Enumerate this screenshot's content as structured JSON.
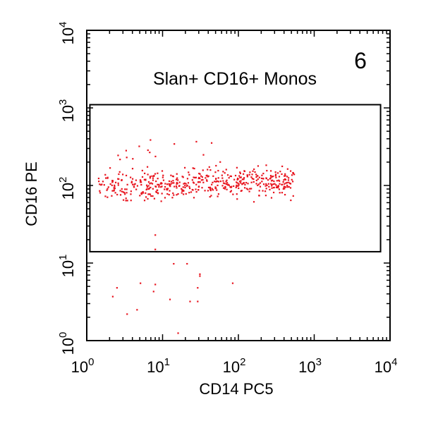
{
  "chart_data": {
    "type": "scatter",
    "panel_number": "6",
    "xlabel": "CD14 PC5",
    "ylabel": "CD16 PE",
    "xscale": "log",
    "yscale": "log",
    "xlim": [
      1,
      10000
    ],
    "ylim": [
      1,
      10000
    ],
    "x_ticks": [
      {
        "value": 1,
        "base": "10",
        "exp": "0"
      },
      {
        "value": 10,
        "base": "10",
        "exp": "1"
      },
      {
        "value": 100,
        "base": "10",
        "exp": "2"
      },
      {
        "value": 1000,
        "base": "10",
        "exp": "3"
      },
      {
        "value": 10000,
        "base": "10",
        "exp": "4"
      }
    ],
    "y_ticks": [
      {
        "value": 1,
        "base": "10",
        "exp": "0"
      },
      {
        "value": 10,
        "base": "10",
        "exp": "1"
      },
      {
        "value": 100,
        "base": "10",
        "exp": "2"
      },
      {
        "value": 1000,
        "base": "10",
        "exp": "3"
      },
      {
        "value": 10000,
        "base": "10",
        "exp": "4"
      }
    ],
    "point_color": "#e8141e",
    "gate": {
      "label": "Slan+ CD16+ Monos",
      "x_range": [
        1.1,
        7500
      ],
      "y_range": [
        14,
        1100
      ]
    },
    "outliers": [
      [
        0.9,
        9.5
      ],
      [
        2.5,
        4.8
      ],
      [
        2.2,
        3.7
      ],
      [
        3.4,
        2.2
      ],
      [
        4.6,
        2.5
      ],
      [
        5.1,
        5.5
      ],
      [
        8.0,
        5.3
      ],
      [
        7.6,
        4.3
      ],
      [
        8.0,
        15.0
      ],
      [
        8.0,
        23.0
      ],
      [
        14.0,
        9.8
      ],
      [
        21.0,
        9.8
      ],
      [
        31.0,
        6.8
      ],
      [
        31.0,
        7.2
      ],
      [
        29.0,
        4.8
      ],
      [
        23.0,
        3.2
      ],
      [
        29.0,
        3.2
      ],
      [
        84.0,
        5.5
      ],
      [
        12.5,
        3.4
      ],
      [
        16.0,
        1.25
      ]
    ]
  }
}
